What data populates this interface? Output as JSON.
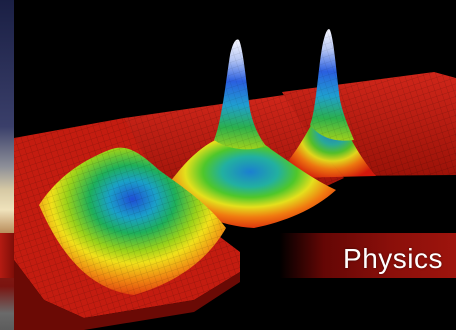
{
  "caption": {
    "label": "Physics"
  },
  "colors": {
    "caption_band": "#8a0f0a",
    "background": "#000000"
  }
}
